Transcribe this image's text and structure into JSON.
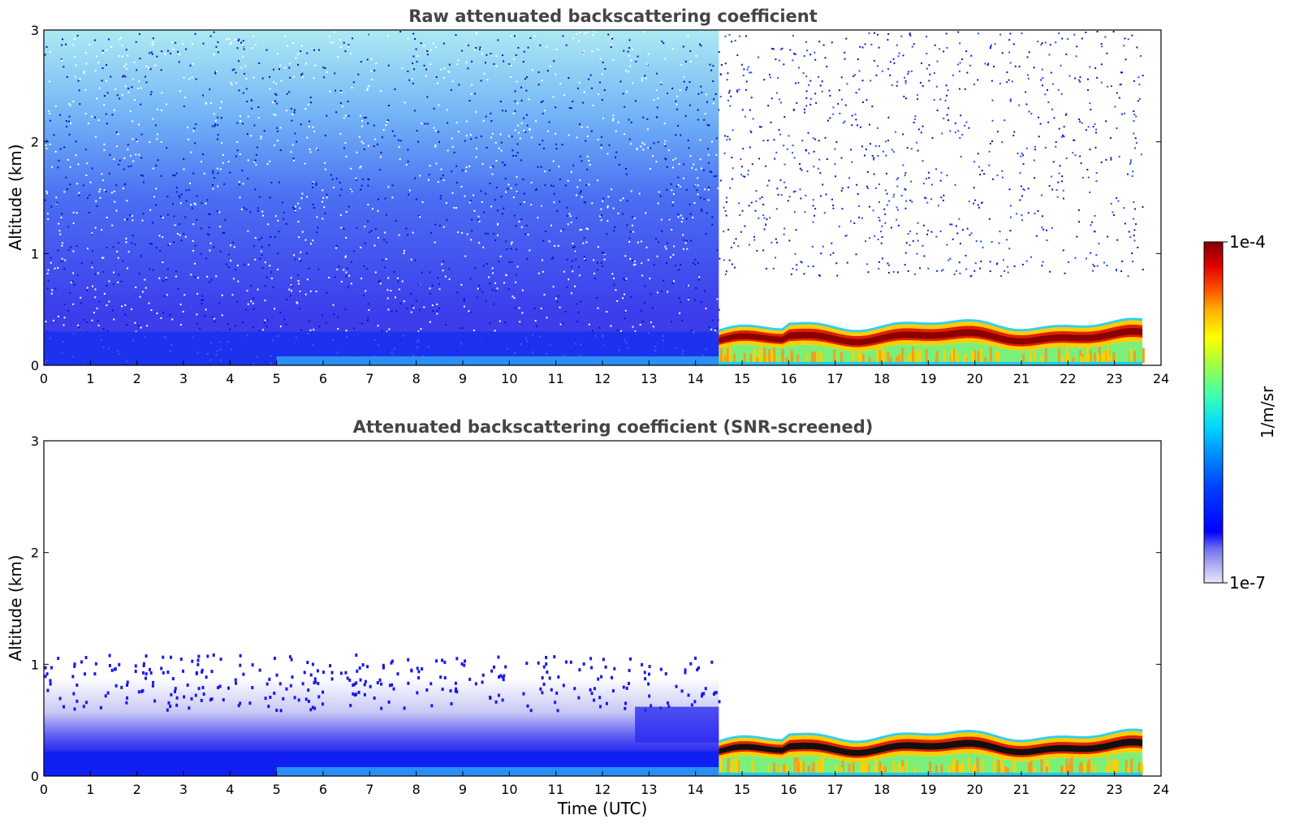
{
  "chart_data": [
    {
      "type": "heatmap",
      "title": "Raw attenuated backscattering coefficient",
      "xlabel": "",
      "ylabel": "Altitude (km)",
      "xlim": [
        0,
        24
      ],
      "ylim": [
        0,
        3
      ],
      "xticks": [
        "0",
        "1",
        "2",
        "3",
        "4",
        "5",
        "6",
        "7",
        "8",
        "9",
        "10",
        "11",
        "12",
        "13",
        "14",
        "15",
        "16",
        "17",
        "18",
        "19",
        "20",
        "21",
        "22",
        "23",
        "24"
      ],
      "yticks": [
        "0",
        "1",
        "2",
        "3"
      ],
      "data_end_time": 23.6,
      "regime_change_time": 14.5,
      "features": {
        "noise_top_km": 3.0,
        "boundary_layer_top_km": 0.3,
        "cloud_base_km": 0.17,
        "cloud_top_km": 0.36
      }
    },
    {
      "type": "heatmap",
      "title": "Attenuated backscattering coefficient (SNR-screened)",
      "xlabel": "Time (UTC)",
      "ylabel": "Altitude (km)",
      "xlim": [
        0,
        24
      ],
      "ylim": [
        0,
        3
      ],
      "xticks": [
        "0",
        "1",
        "2",
        "3",
        "4",
        "5",
        "6",
        "7",
        "8",
        "9",
        "10",
        "11",
        "12",
        "13",
        "14",
        "15",
        "16",
        "17",
        "18",
        "19",
        "20",
        "21",
        "22",
        "23",
        "24"
      ],
      "yticks": [
        "0",
        "1",
        "2",
        "3"
      ],
      "data_end_time": 23.6,
      "regime_change_time": 14.5,
      "features": {
        "aerosol_layer_top_km": 1.1,
        "cloud_base_km": 0.17,
        "cloud_top_km": 0.36
      }
    }
  ],
  "colorbar": {
    "label": "1/m/sr",
    "max_label": "1e-4",
    "min_label": "1e-7",
    "colormap": [
      "#e8e8f8",
      "#b0b0f0",
      "#7070f0",
      "#0000ff",
      "#0040ff",
      "#0090ff",
      "#00d8ff",
      "#40ffb0",
      "#a0ff40",
      "#ffff00",
      "#ffb000",
      "#ff5000",
      "#e00000",
      "#800000"
    ]
  }
}
